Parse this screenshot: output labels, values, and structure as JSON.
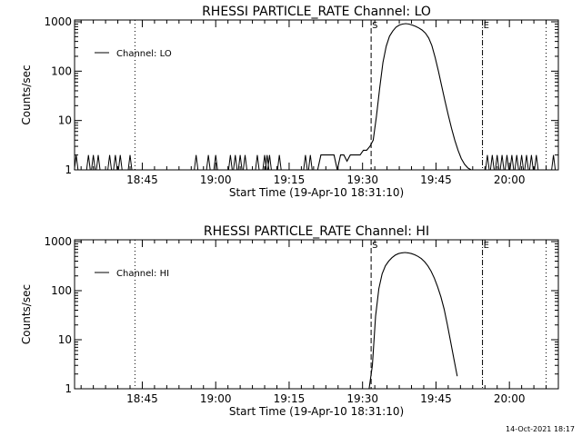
{
  "footer_text": "14-Oct-2021 18:17",
  "chart_data": [
    {
      "type": "line",
      "title": "RHESSI PARTICLE_RATE Channel: LO",
      "xlabel": "Start Time (19-Apr-10 18:31:10)",
      "ylabel": "Counts/sec",
      "y_scale": "log",
      "ylim": [
        1,
        1000
      ],
      "xlim": [
        "18:31:10",
        "20:10:00"
      ],
      "x_ticks": [
        "18:45",
        "19:00",
        "19:15",
        "19:30",
        "19:45",
        "20:00"
      ],
      "y_ticks": [
        "1",
        "10",
        "100",
        "1000"
      ],
      "legend": {
        "label": "Channel: LO",
        "position": "top-left"
      },
      "markers": [
        {
          "label": "S",
          "time": "19:31:45",
          "style": "dashed"
        },
        {
          "label": "E",
          "time": "19:54:30",
          "style": "dash-dot"
        }
      ],
      "dotted_lines": [
        "18:43:30",
        "20:07:30"
      ],
      "series": [
        {
          "baseline_spikes": [
            "18:31:30",
            "18:34:00",
            "18:35:00",
            "18:36:00",
            "18:38:20",
            "18:39:30",
            "18:40:30",
            "18:42:30",
            "18:56:00",
            "18:58:30",
            "19:00:00",
            "19:03:00",
            "19:04:00",
            "19:05:00",
            "19:06:00",
            "19:08:30",
            "19:10:00",
            "19:10:30",
            "19:11:00",
            "19:13:00",
            "19:18:20",
            "19:19:20",
            "20:09:00"
          ],
          "x": [
            "19:20:50",
            "19:21:30",
            "19:24:10",
            "19:24:50",
            "19:25:30",
            "19:26:10",
            "19:26:50",
            "19:27:30",
            "19:28:10",
            "19:28:50",
            "19:29:30",
            "19:30:10",
            "19:30:50",
            "19:31:30",
            "19:32:10",
            "19:32:50",
            "19:33:30",
            "19:34:10",
            "19:34:50",
            "19:35:30",
            "19:36:10",
            "19:36:50",
            "19:37:30",
            "19:38:10",
            "19:38:50",
            "19:39:30",
            "19:40:10",
            "19:40:50",
            "19:41:30",
            "19:42:10",
            "19:42:50",
            "19:43:30",
            "19:44:10",
            "19:44:50",
            "19:45:30",
            "19:46:10",
            "19:46:50",
            "19:47:30",
            "19:48:10",
            "19:48:50",
            "19:49:30",
            "19:50:10",
            "19:50:50",
            "19:51:30",
            "19:52:10"
          ],
          "values": [
            1,
            2,
            2,
            1,
            2,
            2,
            1.5,
            2,
            2,
            2,
            2,
            2.5,
            2.5,
            3,
            4,
            12,
            45,
            150,
            320,
            510,
            650,
            780,
            860,
            900,
            920,
            900,
            860,
            810,
            750,
            680,
            590,
            470,
            330,
            190,
            100,
            50,
            25,
            13,
            7,
            4,
            2.5,
            1.7,
            1.3,
            1.1,
            1
          ]
        }
      ],
      "tail_spikes": [
        "19:55:30",
        "19:56:30",
        "19:57:30",
        "19:58:30",
        "19:59:30",
        "20:00:30",
        "20:01:30",
        "20:02:30",
        "20:03:30",
        "20:04:30",
        "20:05:30"
      ]
    },
    {
      "type": "line",
      "title": "RHESSI PARTICLE_RATE Channel: HI",
      "xlabel": "Start Time (19-Apr-10 18:31:10)",
      "ylabel": "Counts/sec",
      "y_scale": "log",
      "ylim": [
        1,
        1000
      ],
      "xlim": [
        "18:31:10",
        "20:10:00"
      ],
      "x_ticks": [
        "18:45",
        "19:00",
        "19:15",
        "19:30",
        "19:45",
        "20:00"
      ],
      "y_ticks": [
        "1",
        "10",
        "100",
        "1000"
      ],
      "legend": {
        "label": "Channel: HI",
        "position": "top-left"
      },
      "markers": [
        {
          "label": "S",
          "time": "19:31:45",
          "style": "dashed"
        },
        {
          "label": "E",
          "time": "19:54:30",
          "style": "dash-dot"
        }
      ],
      "dotted_lines": [
        "18:43:30",
        "20:07:30"
      ],
      "series": [
        {
          "x": [
            "19:31:20",
            "19:32:00",
            "19:32:40",
            "19:33:20",
            "19:34:00",
            "19:34:40",
            "19:35:20",
            "19:36:00",
            "19:36:40",
            "19:37:20",
            "19:38:00",
            "19:38:40",
            "19:39:20",
            "19:40:00",
            "19:40:40",
            "19:41:20",
            "19:42:00",
            "19:42:40",
            "19:43:20",
            "19:44:00",
            "19:44:40",
            "19:45:20",
            "19:46:00",
            "19:46:40",
            "19:47:20",
            "19:48:00",
            "19:48:40",
            "19:49:20"
          ],
          "values": [
            1,
            3,
            30,
            110,
            220,
            320,
            400,
            470,
            530,
            570,
            590,
            600,
            590,
            570,
            540,
            500,
            450,
            390,
            320,
            250,
            180,
            120,
            75,
            42,
            20,
            9,
            4,
            1.8
          ]
        }
      ]
    }
  ]
}
